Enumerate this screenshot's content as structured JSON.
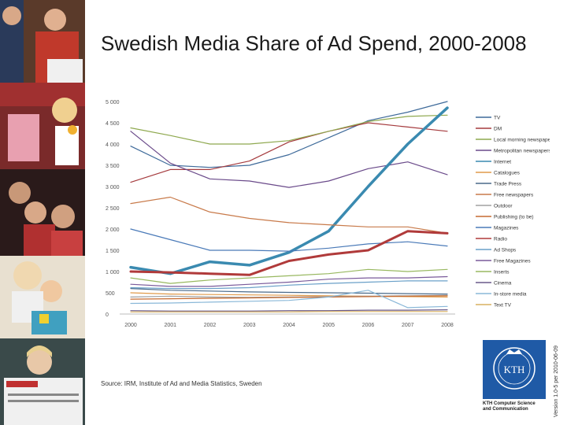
{
  "title": "Swedish Media Share of Ad Spend, 2000-2008",
  "source": "Source:  IRM, Institute of Ad and Media Statistics, Sweden",
  "version": "Version 1.0-5 per 2010-06-09",
  "logo": {
    "name": "KTH",
    "line1": "KTH Computer Science",
    "line2": "and Communication",
    "color": "#1f5aa6"
  },
  "chart_data": {
    "type": "line",
    "x": [
      "2000",
      "2001",
      "2002",
      "2003",
      "2004",
      "2005",
      "2006",
      "2007",
      "2008"
    ],
    "ylim": [
      0,
      5000
    ],
    "yticks": [
      "0",
      "500",
      "1 000",
      "1 500",
      "2 000",
      "2 500",
      "3 000",
      "3 500",
      "4 000",
      "4 500",
      "5 000"
    ],
    "legend_position": "right",
    "series": [
      {
        "name": "TV",
        "color": "#3e6a9a",
        "width": 1.2,
        "values": [
          3950,
          3500,
          3450,
          3500,
          3750,
          4150,
          4550,
          4750,
          5000
        ]
      },
      {
        "name": "DM",
        "color": "#a53b3e",
        "width": 1.2,
        "values": [
          3100,
          3400,
          3400,
          3600,
          4050,
          4300,
          4500,
          4400,
          4300
        ]
      },
      {
        "name": "Local morning newspapers",
        "color": "#8ea84e",
        "width": 1.2,
        "values": [
          4380,
          4200,
          4000,
          4000,
          4080,
          4300,
          4530,
          4650,
          4680
        ]
      },
      {
        "name": "Metropolitan newspapers",
        "color": "#6a4a8a",
        "width": 1.2,
        "values": [
          4300,
          3550,
          3180,
          3130,
          2980,
          3130,
          3420,
          3580,
          3280
        ]
      },
      {
        "name": "Internet",
        "color": "#3a8ab0",
        "width": 3.5,
        "values": [
          1100,
          950,
          1230,
          1150,
          1450,
          1950,
          3000,
          4000,
          4850
        ]
      },
      {
        "name": "Catalogues",
        "color": "#e09a4a",
        "width": 1.2,
        "values": [
          500,
          470,
          460,
          450,
          440,
          430,
          420,
          410,
          400
        ]
      },
      {
        "name": "Trade Press",
        "color": "#4a6a8a",
        "width": 1.2,
        "values": [
          600,
          560,
          540,
          520,
          510,
          500,
          490,
          480,
          470
        ]
      },
      {
        "name": "Free newspapers",
        "color": "#c87a4a",
        "width": 1.2,
        "values": [
          2600,
          2750,
          2400,
          2250,
          2150,
          2100,
          2050,
          2050,
          1900
        ]
      },
      {
        "name": "Outdoor",
        "color": "#a0a0a0",
        "width": 1.2,
        "values": [
          400,
          420,
          400,
          390,
          400,
          410,
          420,
          430,
          440
        ]
      },
      {
        "name": "Publishing (to be)",
        "color": "#c56a30",
        "width": 1.2,
        "values": [
          350,
          360,
          370,
          380,
          390,
          400,
          410,
          420,
          430
        ]
      },
      {
        "name": "Magazines",
        "color": "#4a7ab8",
        "width": 1.2,
        "values": [
          2000,
          1750,
          1500,
          1500,
          1480,
          1550,
          1650,
          1700,
          1600
        ]
      },
      {
        "name": "Radio",
        "color": "#b03a3a",
        "width": 3,
        "values": [
          1000,
          980,
          950,
          920,
          1250,
          1400,
          1500,
          1950,
          1900
        ]
      },
      {
        "name": "Ad Shops",
        "color": "#6aa0c8",
        "width": 1.2,
        "values": [
          620,
          600,
          600,
          620,
          680,
          720,
          750,
          780,
          780
        ]
      },
      {
        "name": "Free Magazines",
        "color": "#7a5a9a",
        "width": 1.2,
        "values": [
          700,
          650,
          650,
          700,
          750,
          820,
          850,
          850,
          880
        ]
      },
      {
        "name": "Inserts",
        "color": "#98b860",
        "width": 1.2,
        "values": [
          850,
          720,
          800,
          850,
          900,
          950,
          1050,
          1000,
          1050
        ]
      },
      {
        "name": "Cinema",
        "color": "#6a5a8a",
        "width": 1.2,
        "values": [
          80,
          70,
          70,
          70,
          80,
          80,
          90,
          90,
          100
        ]
      },
      {
        "name": "In-store media",
        "color": "#8ab8d8",
        "width": 1.2,
        "values": [
          250,
          260,
          280,
          300,
          320,
          400,
          560,
          150,
          180
        ]
      },
      {
        "name": "Text TV",
        "color": "#d8b060",
        "width": 1.2,
        "values": [
          50,
          50,
          50,
          50,
          50,
          60,
          60,
          60,
          60
        ]
      }
    ]
  }
}
